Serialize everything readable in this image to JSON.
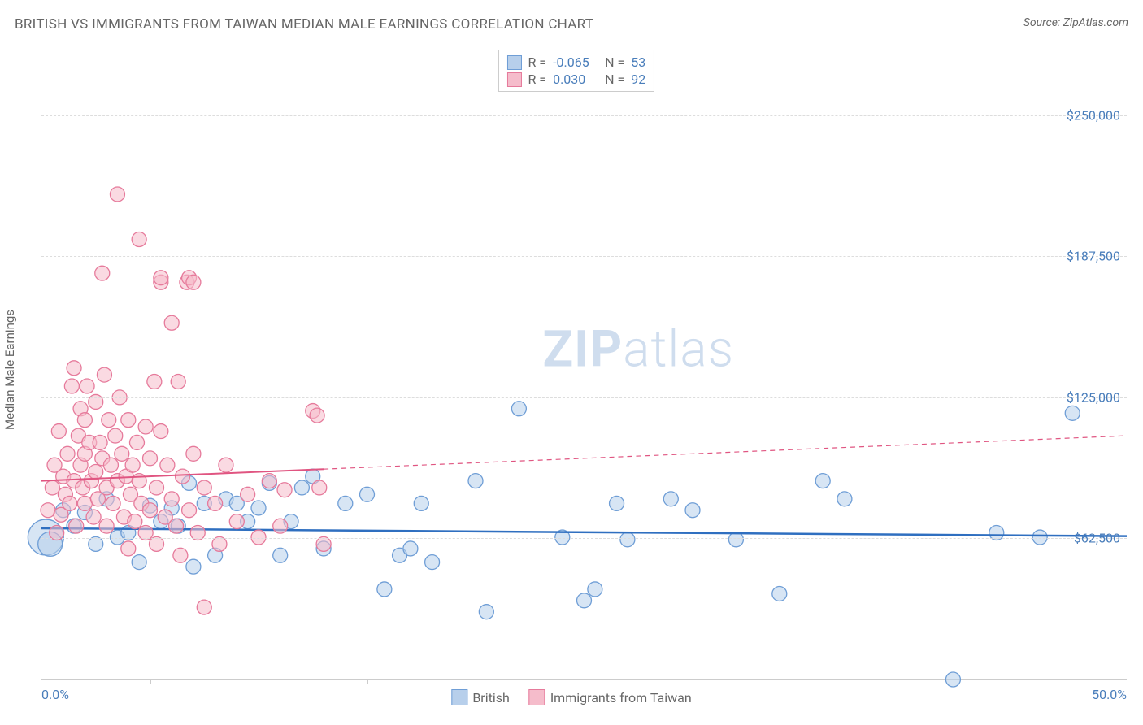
{
  "title": "BRITISH VS IMMIGRANTS FROM TAIWAN MEDIAN MALE EARNINGS CORRELATION CHART",
  "source": "Source: ZipAtlas.com",
  "y_axis_label": "Median Male Earnings",
  "watermark_zip": "ZIP",
  "watermark_atlas": "atlas",
  "chart": {
    "type": "scatter",
    "background_color": "#ffffff",
    "grid_color": "#dddddd",
    "axis_color": "#cccccc",
    "title_fontsize": 17,
    "label_fontsize": 15,
    "tick_fontsize": 16,
    "tick_color": "#4a7ebb",
    "text_color": "#666666",
    "xlim": [
      0,
      50
    ],
    "ylim": [
      0,
      281250
    ],
    "x_min_label": "0.0%",
    "x_max_label": "50.0%",
    "x_ticks": [
      5,
      10,
      15,
      20,
      25,
      30,
      35,
      40,
      45
    ],
    "y_gridlines": [
      {
        "value": 62500,
        "label": "$62,500"
      },
      {
        "value": 125000,
        "label": "$125,000"
      },
      {
        "value": 187500,
        "label": "$187,500"
      },
      {
        "value": 250000,
        "label": "$250,000"
      }
    ],
    "series": [
      {
        "name": "British",
        "fill": "#b7cfeb",
        "stroke": "#6f9ed6",
        "fill_opacity": 0.55,
        "marker_radius": 9,
        "stats": {
          "R_label": "R =",
          "R": "-0.065",
          "N_label": "N =",
          "N": "53"
        },
        "trend": {
          "y_at_xmin": 67000,
          "y_at_xmax": 63500,
          "stroke": "#2f6fc0",
          "width": 2.5,
          "solid_until_x": 50,
          "dash": null
        },
        "points": [
          {
            "x": 0.2,
            "y": 63000,
            "r": 22
          },
          {
            "x": 0.4,
            "y": 60000,
            "r": 15
          },
          {
            "x": 1.0,
            "y": 75000
          },
          {
            "x": 1.5,
            "y": 68000
          },
          {
            "x": 2.0,
            "y": 74000
          },
          {
            "x": 2.5,
            "y": 60000
          },
          {
            "x": 3.0,
            "y": 80000
          },
          {
            "x": 3.5,
            "y": 63000
          },
          {
            "x": 4.0,
            "y": 65000
          },
          {
            "x": 4.5,
            "y": 52000
          },
          {
            "x": 5.0,
            "y": 77000
          },
          {
            "x": 5.5,
            "y": 70000
          },
          {
            "x": 6.0,
            "y": 76000
          },
          {
            "x": 6.3,
            "y": 68000
          },
          {
            "x": 6.8,
            "y": 87000
          },
          {
            "x": 7.0,
            "y": 50000
          },
          {
            "x": 7.5,
            "y": 78000
          },
          {
            "x": 8.0,
            "y": 55000
          },
          {
            "x": 8.5,
            "y": 80000
          },
          {
            "x": 9.0,
            "y": 78000
          },
          {
            "x": 9.5,
            "y": 70000
          },
          {
            "x": 10.0,
            "y": 76000
          },
          {
            "x": 10.5,
            "y": 87000
          },
          {
            "x": 11.0,
            "y": 55000
          },
          {
            "x": 11.5,
            "y": 70000
          },
          {
            "x": 12.0,
            "y": 85000
          },
          {
            "x": 12.5,
            "y": 90000
          },
          {
            "x": 13.0,
            "y": 58000
          },
          {
            "x": 14.0,
            "y": 78000
          },
          {
            "x": 15.0,
            "y": 82000
          },
          {
            "x": 15.8,
            "y": 40000
          },
          {
            "x": 16.5,
            "y": 55000
          },
          {
            "x": 17.0,
            "y": 58000
          },
          {
            "x": 17.5,
            "y": 78000
          },
          {
            "x": 18.0,
            "y": 52000
          },
          {
            "x": 20.0,
            "y": 88000
          },
          {
            "x": 20.5,
            "y": 30000
          },
          {
            "x": 22.0,
            "y": 120000
          },
          {
            "x": 24.0,
            "y": 63000
          },
          {
            "x": 25.0,
            "y": 35000
          },
          {
            "x": 25.5,
            "y": 40000
          },
          {
            "x": 26.5,
            "y": 78000
          },
          {
            "x": 27.0,
            "y": 62000
          },
          {
            "x": 29.0,
            "y": 80000
          },
          {
            "x": 30.0,
            "y": 75000
          },
          {
            "x": 32.0,
            "y": 62000
          },
          {
            "x": 34.0,
            "y": 38000
          },
          {
            "x": 36.0,
            "y": 88000
          },
          {
            "x": 37.0,
            "y": 80000
          },
          {
            "x": 42.0,
            "y": 0
          },
          {
            "x": 44.0,
            "y": 65000
          },
          {
            "x": 46.0,
            "y": 63000
          },
          {
            "x": 47.5,
            "y": 118000
          }
        ]
      },
      {
        "name": "Immigrants from Taiwan",
        "fill": "#f5bccb",
        "stroke": "#e67a9b",
        "fill_opacity": 0.55,
        "marker_radius": 9,
        "stats": {
          "R_label": "R =",
          "R": " 0.030",
          "N_label": "N =",
          "N": "92"
        },
        "trend": {
          "y_at_xmin": 88000,
          "y_at_xmax": 108000,
          "stroke": "#e05581",
          "width": 2,
          "solid_until_x": 13,
          "dash": "6,5"
        },
        "points": [
          {
            "x": 0.3,
            "y": 75000
          },
          {
            "x": 0.5,
            "y": 85000
          },
          {
            "x": 0.6,
            "y": 95000
          },
          {
            "x": 0.7,
            "y": 65000
          },
          {
            "x": 0.8,
            "y": 110000
          },
          {
            "x": 0.9,
            "y": 73000
          },
          {
            "x": 1.0,
            "y": 90000
          },
          {
            "x": 1.1,
            "y": 82000
          },
          {
            "x": 1.2,
            "y": 100000
          },
          {
            "x": 1.3,
            "y": 78000
          },
          {
            "x": 1.4,
            "y": 130000
          },
          {
            "x": 1.5,
            "y": 88000
          },
          {
            "x": 1.5,
            "y": 138000
          },
          {
            "x": 1.6,
            "y": 68000
          },
          {
            "x": 1.7,
            "y": 108000
          },
          {
            "x": 1.8,
            "y": 120000
          },
          {
            "x": 1.8,
            "y": 95000
          },
          {
            "x": 1.9,
            "y": 85000
          },
          {
            "x": 2.0,
            "y": 115000
          },
          {
            "x": 2.0,
            "y": 100000
          },
          {
            "x": 2.0,
            "y": 78000
          },
          {
            "x": 2.1,
            "y": 130000
          },
          {
            "x": 2.2,
            "y": 105000
          },
          {
            "x": 2.3,
            "y": 88000
          },
          {
            "x": 2.4,
            "y": 72000
          },
          {
            "x": 2.5,
            "y": 123000
          },
          {
            "x": 2.5,
            "y": 92000
          },
          {
            "x": 2.6,
            "y": 80000
          },
          {
            "x": 2.7,
            "y": 105000
          },
          {
            "x": 2.8,
            "y": 180000
          },
          {
            "x": 2.8,
            "y": 98000
          },
          {
            "x": 2.9,
            "y": 135000
          },
          {
            "x": 3.0,
            "y": 85000
          },
          {
            "x": 3.0,
            "y": 68000
          },
          {
            "x": 3.1,
            "y": 115000
          },
          {
            "x": 3.2,
            "y": 95000
          },
          {
            "x": 3.3,
            "y": 78000
          },
          {
            "x": 3.4,
            "y": 108000
          },
          {
            "x": 3.5,
            "y": 215000
          },
          {
            "x": 3.5,
            "y": 88000
          },
          {
            "x": 3.6,
            "y": 125000
          },
          {
            "x": 3.7,
            "y": 100000
          },
          {
            "x": 3.8,
            "y": 72000
          },
          {
            "x": 3.9,
            "y": 90000
          },
          {
            "x": 4.0,
            "y": 58000
          },
          {
            "x": 4.0,
            "y": 115000
          },
          {
            "x": 4.1,
            "y": 82000
          },
          {
            "x": 4.2,
            "y": 95000
          },
          {
            "x": 4.3,
            "y": 70000
          },
          {
            "x": 4.4,
            "y": 105000
          },
          {
            "x": 4.5,
            "y": 195000
          },
          {
            "x": 4.5,
            "y": 88000
          },
          {
            "x": 4.6,
            "y": 78000
          },
          {
            "x": 4.8,
            "y": 112000
          },
          {
            "x": 4.8,
            "y": 65000
          },
          {
            "x": 5.0,
            "y": 98000
          },
          {
            "x": 5.0,
            "y": 75000
          },
          {
            "x": 5.2,
            "y": 132000
          },
          {
            "x": 5.3,
            "y": 85000
          },
          {
            "x": 5.3,
            "y": 60000
          },
          {
            "x": 5.5,
            "y": 176000
          },
          {
            "x": 5.5,
            "y": 178000
          },
          {
            "x": 5.5,
            "y": 110000
          },
          {
            "x": 5.7,
            "y": 72000
          },
          {
            "x": 5.8,
            "y": 95000
          },
          {
            "x": 6.0,
            "y": 158000
          },
          {
            "x": 6.0,
            "y": 80000
          },
          {
            "x": 6.2,
            "y": 68000
          },
          {
            "x": 6.3,
            "y": 132000
          },
          {
            "x": 6.4,
            "y": 55000
          },
          {
            "x": 6.5,
            "y": 90000
          },
          {
            "x": 6.7,
            "y": 176000
          },
          {
            "x": 6.8,
            "y": 178000
          },
          {
            "x": 6.8,
            "y": 75000
          },
          {
            "x": 7.0,
            "y": 176000
          },
          {
            "x": 7.0,
            "y": 100000
          },
          {
            "x": 7.2,
            "y": 65000
          },
          {
            "x": 7.5,
            "y": 85000
          },
          {
            "x": 7.5,
            "y": 32000
          },
          {
            "x": 8.0,
            "y": 78000
          },
          {
            "x": 8.2,
            "y": 60000
          },
          {
            "x": 8.5,
            "y": 95000
          },
          {
            "x": 9.0,
            "y": 70000
          },
          {
            "x": 9.5,
            "y": 82000
          },
          {
            "x": 10.0,
            "y": 63000
          },
          {
            "x": 10.5,
            "y": 88000
          },
          {
            "x": 11.0,
            "y": 68000
          },
          {
            "x": 11.2,
            "y": 84000
          },
          {
            "x": 12.5,
            "y": 119000
          },
          {
            "x": 12.7,
            "y": 117000
          },
          {
            "x": 12.8,
            "y": 85000
          },
          {
            "x": 13.0,
            "y": 60000
          }
        ]
      }
    ],
    "bottom_legend": [
      {
        "label": "British",
        "fill": "#b7cfeb",
        "stroke": "#6f9ed6"
      },
      {
        "label": "Immigrants from Taiwan",
        "fill": "#f5bccb",
        "stroke": "#e67a9b"
      }
    ]
  }
}
